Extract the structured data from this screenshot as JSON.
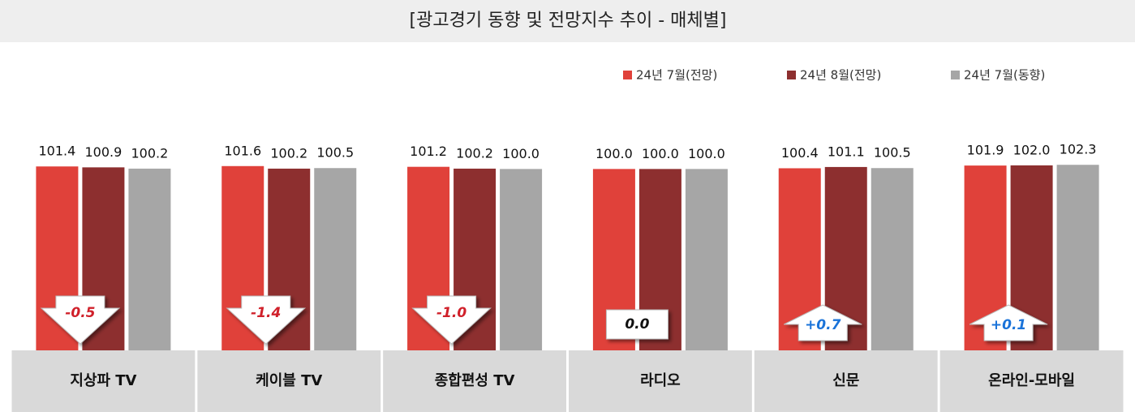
{
  "chart_data": {
    "type": "bar",
    "title": "[광고경기 동향 및 전망지수 추이 - 매체별]",
    "categories": [
      "지상파 TV",
      "케이블 TV",
      "종합편성 TV",
      "라디오",
      "신문",
      "온라인-모바일"
    ],
    "series": [
      {
        "name": "24년 7월(전망)",
        "color": "#e0413a",
        "values": [
          101.4,
          101.6,
          101.2,
          100.0,
          100.4,
          101.9
        ],
        "value_labels": [
          "101.4",
          "101.6",
          "101.2",
          "100.0",
          "100.4",
          "101.9"
        ]
      },
      {
        "name": "24년 8월(전망)",
        "color": "#8d2f2f",
        "values": [
          100.9,
          100.2,
          100.2,
          100.0,
          101.1,
          102.0
        ],
        "value_labels": [
          "100.9",
          "100.2",
          "100.2",
          "100.0",
          "101.1",
          "102.0"
        ]
      },
      {
        "name": "24년 7월(동향)",
        "color": "#a6a6a6",
        "values": [
          100.2,
          100.5,
          100.0,
          100.0,
          100.5,
          102.3
        ],
        "value_labels": [
          "100.2",
          "100.5",
          "100.0",
          "100.0",
          "100.5",
          "102.3"
        ]
      }
    ],
    "changes": [
      -0.5,
      -1.4,
      -1.0,
      0.0,
      0.7,
      0.1
    ],
    "change_labels": [
      "-0.5",
      "-1.4",
      "-1.0",
      "0.0",
      "+0.7",
      "+0.1"
    ],
    "ylim": [
      0,
      110
    ],
    "legend": "top-right"
  }
}
